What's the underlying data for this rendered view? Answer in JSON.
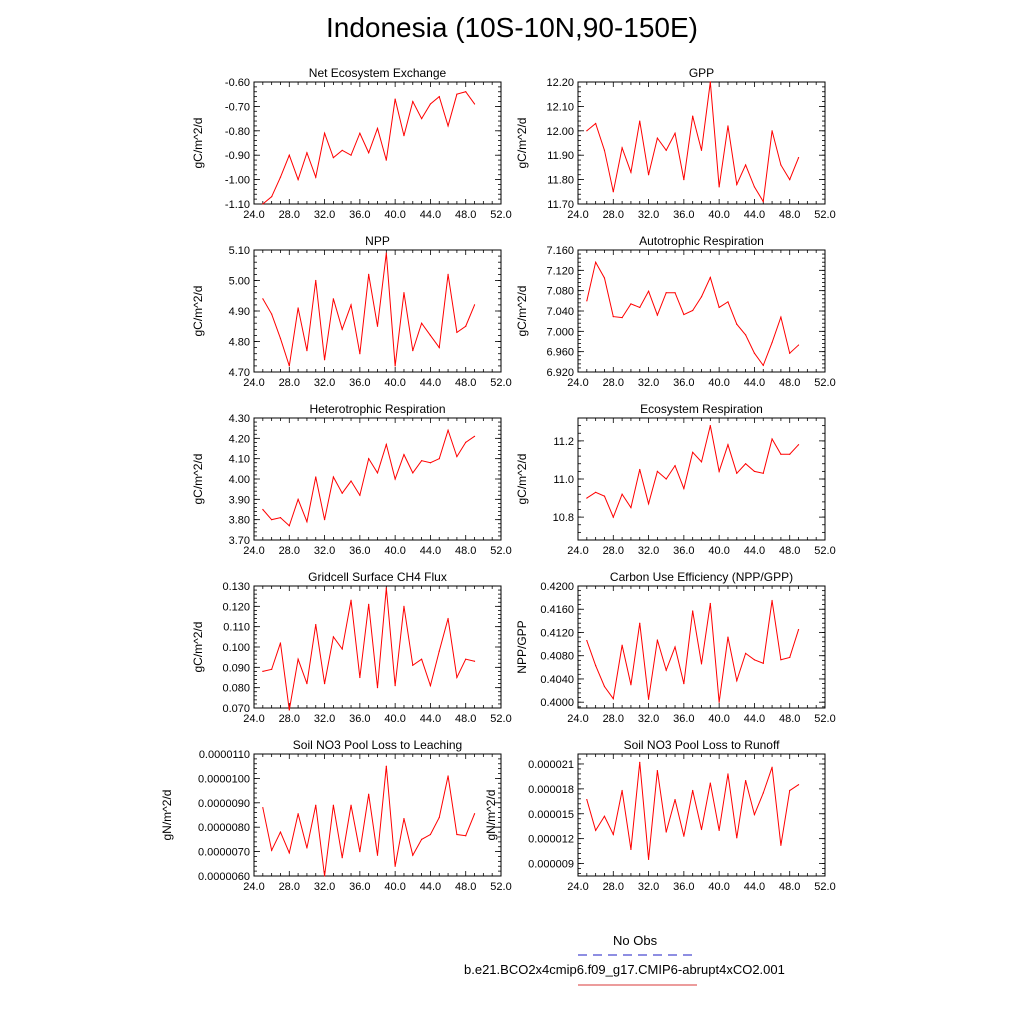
{
  "title": "Indonesia (10S-10N,90-150E)",
  "legend": {
    "obs_label": "No Obs",
    "obs_color": "#0000ff",
    "model_label": "b.e21.BCO2x4cmip6.f09_g17.CMIP6-abrupt4xCO2.001",
    "model_color": "#ff0000"
  },
  "line_color": "#ff0000",
  "x": [
    25,
    26,
    27,
    28,
    29,
    30,
    31,
    32,
    33,
    34,
    35,
    36,
    37,
    38,
    39,
    40,
    41,
    42,
    43,
    44,
    45,
    46,
    47,
    48,
    49
  ],
  "xlim": [
    24,
    52
  ],
  "xticks": [
    "24.0",
    "28.0",
    "32.0",
    "36.0",
    "40.0",
    "44.0",
    "48.0",
    "52.0"
  ],
  "chart_data": [
    {
      "type": "line",
      "title": "Net Ecosystem Exchange",
      "ylabel": "gC/m^2/d",
      "ylim": [
        -1.1,
        -0.6
      ],
      "yticks": [
        "-0.60",
        "-0.70",
        "-0.80",
        "-0.90",
        "-1.00",
        "-1.10"
      ],
      "values": [
        -1.1,
        -1.07,
        -0.99,
        -0.9,
        -1.0,
        -0.89,
        -0.99,
        -0.81,
        -0.91,
        -0.88,
        -0.9,
        -0.81,
        -0.89,
        -0.79,
        -0.92,
        -0.67,
        -0.82,
        -0.68,
        -0.75,
        -0.69,
        -0.66,
        -0.78,
        -0.65,
        -0.64,
        -0.69
      ]
    },
    {
      "type": "line",
      "title": "GPP",
      "ylabel": "gC/m^2/d",
      "ylim": [
        11.7,
        12.2
      ],
      "yticks": [
        "12.20",
        "12.10",
        "12.00",
        "11.90",
        "11.80",
        "11.70"
      ],
      "values": [
        12.0,
        12.03,
        11.92,
        11.75,
        11.93,
        11.83,
        12.04,
        11.82,
        11.97,
        11.92,
        11.99,
        11.8,
        12.06,
        11.92,
        12.2,
        11.77,
        12.02,
        11.78,
        11.86,
        11.77,
        11.71,
        12.0,
        11.86,
        11.8,
        11.89
      ]
    },
    {
      "type": "line",
      "title": "NPP",
      "ylabel": "gC/m^2/d",
      "ylim": [
        4.7,
        5.1
      ],
      "yticks": [
        "5.10",
        "5.00",
        "4.90",
        "4.80",
        "4.70"
      ],
      "values": [
        4.94,
        4.89,
        4.81,
        4.72,
        4.91,
        4.77,
        5.0,
        4.74,
        4.94,
        4.84,
        4.92,
        4.76,
        5.02,
        4.85,
        5.09,
        4.72,
        4.96,
        4.77,
        4.86,
        4.82,
        4.78,
        5.02,
        4.83,
        4.85,
        4.92
      ]
    },
    {
      "type": "line",
      "title": "Autotrophic Respiration",
      "ylabel": "gC/m^2/d",
      "ylim": [
        6.92,
        7.16
      ],
      "yticks": [
        "7.160",
        "7.120",
        "7.080",
        "7.040",
        "7.000",
        "6.960",
        "6.920"
      ],
      "values": [
        7.06,
        7.136,
        7.105,
        7.029,
        7.027,
        7.054,
        7.047,
        7.079,
        7.032,
        7.076,
        7.076,
        7.033,
        7.041,
        7.068,
        7.106,
        7.047,
        7.058,
        7.014,
        6.993,
        6.957,
        6.933,
        6.978,
        7.028,
        6.957,
        6.973
      ]
    },
    {
      "type": "line",
      "title": "Heterotrophic Respiration",
      "ylabel": "gC/m^2/d",
      "ylim": [
        3.7,
        4.3
      ],
      "yticks": [
        "4.30",
        "4.20",
        "4.10",
        "4.00",
        "3.90",
        "3.80",
        "3.70"
      ],
      "values": [
        3.85,
        3.8,
        3.81,
        3.77,
        3.9,
        3.79,
        4.01,
        3.8,
        4.01,
        3.93,
        3.99,
        3.92,
        4.1,
        4.03,
        4.17,
        4.0,
        4.12,
        4.03,
        4.09,
        4.08,
        4.1,
        4.24,
        4.11,
        4.18,
        4.21
      ]
    },
    {
      "type": "line",
      "title": "Ecosystem Respiration",
      "ylabel": "gC/m^2/d",
      "ylim": [
        10.68,
        11.32
      ],
      "yticks": [
        "11.2",
        "11.0",
        "10.8"
      ],
      "ytick_values": [
        11.2,
        11.0,
        10.8
      ],
      "values": [
        10.9,
        10.93,
        10.91,
        10.8,
        10.92,
        10.85,
        11.05,
        10.87,
        11.04,
        11.0,
        11.07,
        10.95,
        11.14,
        11.09,
        11.28,
        11.04,
        11.18,
        11.03,
        11.08,
        11.04,
        11.03,
        11.21,
        11.13,
        11.13,
        11.18
      ]
    },
    {
      "type": "line",
      "title": "Gridcell Surface CH4 Flux",
      "ylabel": "gC/m^2/d",
      "ylim": [
        0.07,
        0.13
      ],
      "yticks": [
        "0.130",
        "0.120",
        "0.110",
        "0.100",
        "0.090",
        "0.080",
        "0.070"
      ],
      "values": [
        0.088,
        0.089,
        0.102,
        0.069,
        0.094,
        0.082,
        0.111,
        0.082,
        0.105,
        0.099,
        0.123,
        0.085,
        0.121,
        0.08,
        0.129,
        0.081,
        0.12,
        0.091,
        0.094,
        0.081,
        0.098,
        0.114,
        0.085,
        0.094,
        0.093
      ]
    },
    {
      "type": "line",
      "title": "Carbon Use Efficiency (NPP/GPP)",
      "ylabel": "NPP/GPP",
      "ylim": [
        0.399,
        0.42
      ],
      "yticks": [
        "0.4200",
        "0.4160",
        "0.4120",
        "0.4080",
        "0.4040",
        "0.4000"
      ],
      "ytick_values": [
        0.42,
        0.416,
        0.412,
        0.408,
        0.404,
        0.4
      ],
      "values": [
        0.4106,
        0.4063,
        0.4027,
        0.4006,
        0.4098,
        0.403,
        0.4136,
        0.4005,
        0.4107,
        0.4055,
        0.4095,
        0.4032,
        0.4157,
        0.4066,
        0.417,
        0.4,
        0.4112,
        0.4037,
        0.4084,
        0.4073,
        0.4067,
        0.4175,
        0.4073,
        0.4077,
        0.4125
      ]
    },
    {
      "type": "line",
      "title": "Soil NO3 Pool Loss to Leaching",
      "ylabel": "gN/m^2/d",
      "ylim": [
        6e-06,
        1.1e-05
      ],
      "yticks": [
        "0.0000110",
        "0.0000100",
        "0.0000090",
        "0.0000080",
        "0.0000070",
        "0.0000060"
      ],
      "values": [
        8.8e-06,
        7.05e-06,
        7.8e-06,
        6.95e-06,
        8.55e-06,
        7.15e-06,
        8.9e-06,
        6e-06,
        8.9e-06,
        6.75e-06,
        8.9e-06,
        7e-06,
        9.35e-06,
        6.85e-06,
        1.05e-05,
        6.4e-06,
        8.35e-06,
        6.85e-06,
        7.5e-06,
        7.7e-06,
        8.4e-06,
        1.01e-05,
        7.7e-06,
        7.65e-06,
        8.55e-06
      ]
    },
    {
      "type": "line",
      "title": "Soil NO3 Pool Loss to Runoff",
      "ylabel": "gN/m^2/d",
      "ylim": [
        7.5e-06,
        2.22e-05
      ],
      "yticks": [
        "0.000021",
        "0.000018",
        "0.000015",
        "0.000012",
        "0.000009"
      ],
      "ytick_values": [
        2.1e-05,
        1.8e-05,
        1.5e-05,
        1.2e-05,
        9e-06
      ],
      "values": [
        1.67e-05,
        1.3e-05,
        1.47e-05,
        1.25e-05,
        1.78e-05,
        1.07e-05,
        2.12e-05,
        9.5e-06,
        2.02e-05,
        1.28e-05,
        1.67e-05,
        1.23e-05,
        1.78e-05,
        1.31e-05,
        1.87e-05,
        1.3e-05,
        1.98e-05,
        1.21e-05,
        1.9e-05,
        1.49e-05,
        1.75e-05,
        2.06e-05,
        1.12e-05,
        1.78e-05,
        1.85e-05
      ]
    }
  ]
}
